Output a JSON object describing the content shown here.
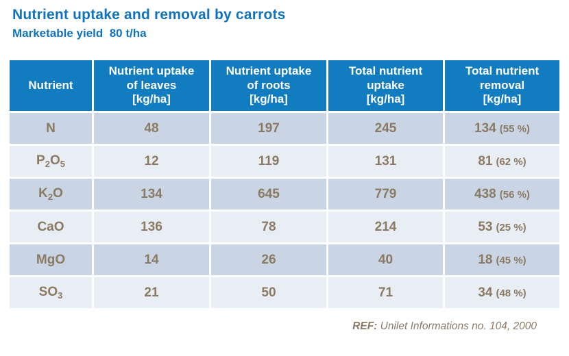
{
  "title": "Nutrient uptake and removal by carrots",
  "subtitle": "Marketable yield  80 t/ha",
  "colors": {
    "title_blue": "#1173BC",
    "header_bg": "#127CC1",
    "row_dark": "#C9D5E4",
    "row_light": "#E9EDF4",
    "cell_text": "#8A7A63",
    "footer_text": "#8A7A68"
  },
  "table": {
    "columns": [
      {
        "key": "nutrient",
        "label": "Nutrient"
      },
      {
        "key": "uptake-leaves",
        "label": "Nutrient uptake\nof leaves\n[kg/ha]"
      },
      {
        "key": "uptake-roots",
        "label": "Nutrient uptake\nof roots\n[kg/ha]"
      },
      {
        "key": "total-uptake",
        "label": "Total nutrient\nuptake\n[kg/ha]"
      },
      {
        "key": "total-removal",
        "label": "Total nutrient\nremoval\n[kg/ha]"
      }
    ],
    "rows": [
      {
        "nutrient": [
          {
            "t": "N"
          }
        ],
        "leaves": "48",
        "roots": "197",
        "uptake": "245",
        "removal": "134",
        "removal_pct": "(55 %)"
      },
      {
        "nutrient": [
          {
            "t": "P"
          },
          {
            "t": "2",
            "sub": true
          },
          {
            "t": "O"
          },
          {
            "t": "5",
            "sub": true
          }
        ],
        "leaves": "12",
        "roots": "119",
        "uptake": "131",
        "removal": "81",
        "removal_pct": "(62 %)"
      },
      {
        "nutrient": [
          {
            "t": "K"
          },
          {
            "t": "2",
            "sub": true
          },
          {
            "t": "O"
          }
        ],
        "leaves": "134",
        "roots": "645",
        "uptake": "779",
        "removal": "438",
        "removal_pct": "(56 %)"
      },
      {
        "nutrient": [
          {
            "t": "CaO"
          }
        ],
        "leaves": "136",
        "roots": "78",
        "uptake": "214",
        "removal": "53",
        "removal_pct": "(25 %)"
      },
      {
        "nutrient": [
          {
            "t": "MgO"
          }
        ],
        "leaves": "14",
        "roots": "26",
        "uptake": "40",
        "removal": "18",
        "removal_pct": "(45 %)"
      },
      {
        "nutrient": [
          {
            "t": "SO"
          },
          {
            "t": "3",
            "sub": true
          }
        ],
        "leaves": "21",
        "roots": "50",
        "uptake": "71",
        "removal": "34",
        "removal_pct": "(48 %)"
      }
    ]
  },
  "footer": {
    "ref_label": "REF:",
    "ref_text": " Unilet Informations no. 104, 2000"
  }
}
